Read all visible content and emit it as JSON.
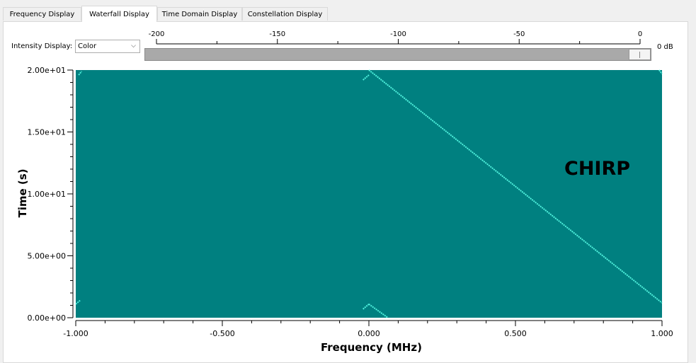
{
  "tabs": [
    {
      "label": "Frequency Display",
      "active": false
    },
    {
      "label": "Waterfall Display",
      "active": true
    },
    {
      "label": "Time Domain Display",
      "active": false
    },
    {
      "label": "Constellation Display",
      "active": false
    }
  ],
  "controls": {
    "intensity_label": "Intensity Display:",
    "intensity_value": "Color",
    "slider_ticks": [
      "-200",
      "-150",
      "-100",
      "-50",
      "0"
    ],
    "slider_unit": "0 dB",
    "slider_value_db": 0
  },
  "colors": {
    "background": "#008080",
    "trace": "#4ff0dc"
  },
  "chart_data": {
    "type": "heatmap",
    "xlabel": "Frequency (MHz)",
    "ylabel": "Time (s)",
    "xlim": [
      -1.0,
      1.0
    ],
    "ylim": [
      0.0,
      20.0
    ],
    "x_ticks": [
      "-1.000",
      "-0.500",
      "0.000",
      "0.500",
      "1.000"
    ],
    "y_ticks": [
      "0.00e+00",
      "5.00e+00",
      "1.00e+01",
      "1.50e+01",
      "2.00e+01"
    ],
    "annotation": "CHIRP",
    "traces": [
      {
        "x": [
          0.0,
          1.0
        ],
        "y": [
          20.0,
          1.2
        ]
      },
      {
        "x": [
          -0.02,
          0.0
        ],
        "y": [
          19.2,
          19.6
        ]
      },
      {
        "x": [
          0.0,
          0.065
        ],
        "y": [
          1.1,
          0.0
        ]
      },
      {
        "x": [
          -0.02,
          0.0
        ],
        "y": [
          0.7,
          1.1
        ]
      },
      {
        "x": [
          -1.0,
          -0.985
        ],
        "y": [
          1.1,
          1.4
        ]
      },
      {
        "x": [
          -0.99,
          -0.98
        ],
        "y": [
          19.6,
          19.9
        ]
      },
      {
        "x": [
          0.99,
          1.0
        ],
        "y": [
          20.0,
          19.7
        ]
      }
    ]
  }
}
